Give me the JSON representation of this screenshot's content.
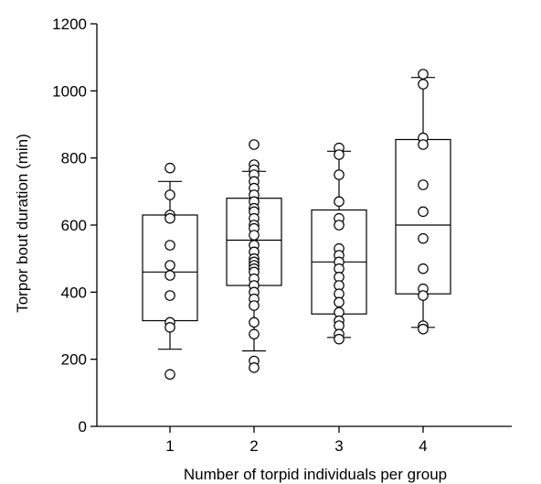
{
  "chart_data": {
    "type": "box",
    "title": "",
    "xlabel": "Number of torpid individuals per group",
    "ylabel": "Torpor bout duration (min)",
    "ylim": [
      0,
      1200
    ],
    "yticks": [
      0,
      200,
      400,
      600,
      800,
      1000,
      1200
    ],
    "grid": false,
    "legend": "none",
    "categories": [
      "1",
      "2",
      "3",
      "4"
    ],
    "boxes": [
      {
        "category": "1",
        "whisker_low": 230,
        "q1": 315,
        "median": 460,
        "q3": 630,
        "whisker_high": 730,
        "points": [
          770,
          690,
          630,
          620,
          540,
          480,
          450,
          390,
          310,
          295,
          155
        ]
      },
      {
        "category": "2",
        "whisker_low": 225,
        "q1": 420,
        "median": 555,
        "q3": 680,
        "whisker_high": 760,
        "points": [
          840,
          780,
          765,
          750,
          730,
          710,
          690,
          670,
          650,
          640,
          620,
          600,
          590,
          570,
          540,
          520,
          500,
          490,
          480,
          470,
          460,
          440,
          420,
          400,
          380,
          360,
          310,
          275,
          195,
          175
        ]
      },
      {
        "category": "3",
        "whisker_low": 265,
        "q1": 335,
        "median": 490,
        "q3": 645,
        "whisker_high": 820,
        "points": [
          830,
          810,
          750,
          670,
          620,
          600,
          530,
          510,
          490,
          470,
          445,
          420,
          395,
          370,
          340,
          315,
          300,
          275,
          260
        ]
      },
      {
        "category": "4",
        "whisker_low": 295,
        "q1": 395,
        "median": 600,
        "q3": 855,
        "whisker_high": 1040,
        "points": [
          1050,
          1020,
          860,
          840,
          720,
          640,
          560,
          470,
          410,
          390,
          300,
          290
        ]
      }
    ]
  }
}
